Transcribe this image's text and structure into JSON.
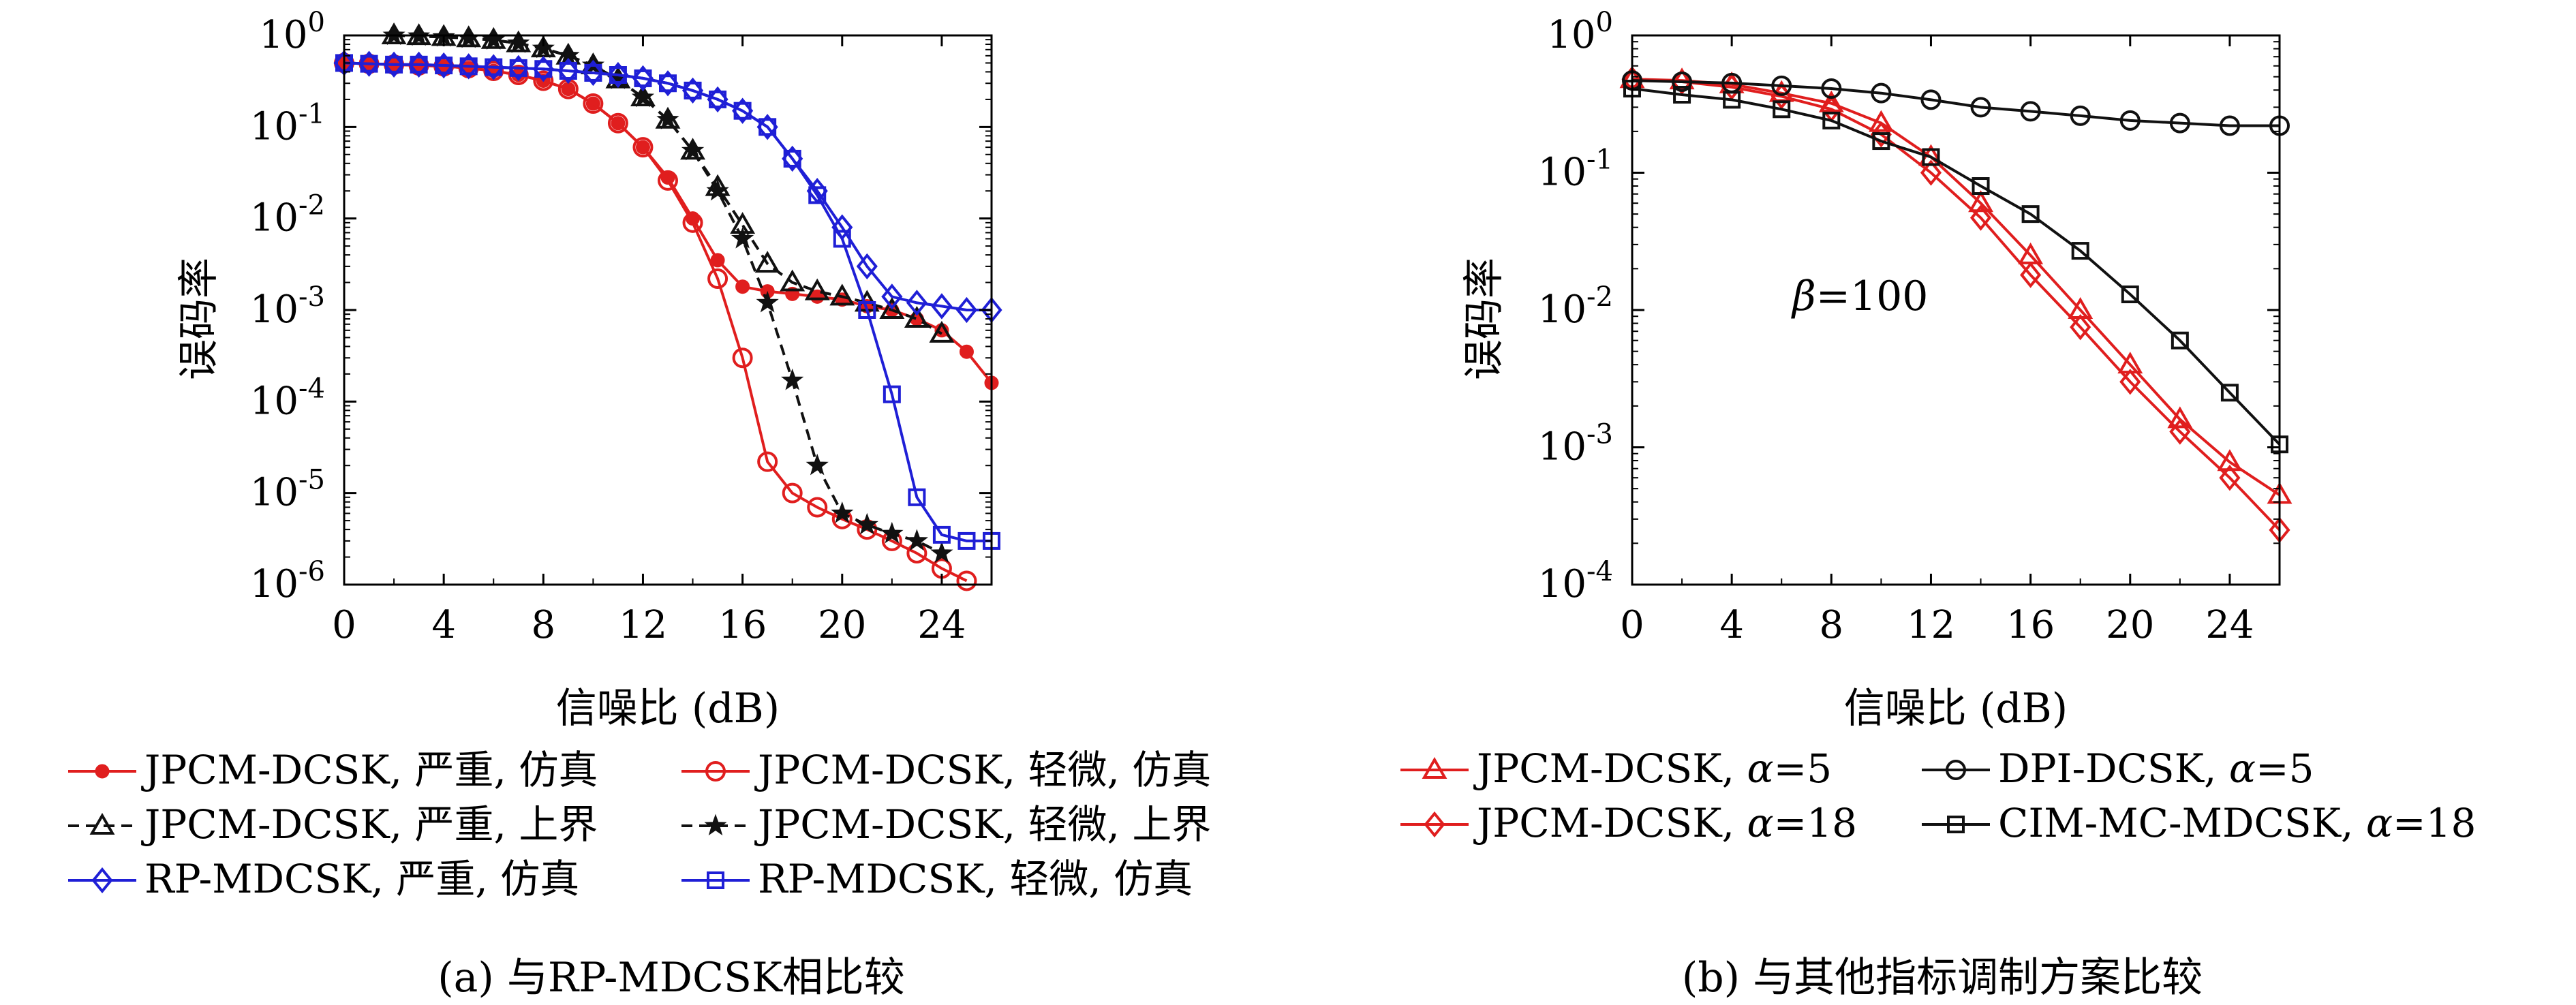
{
  "chart_data": [
    {
      "type": "line",
      "caption": "(a) 与RP-MDCSK相比较",
      "xlabel": "信噪比 (dB)",
      "ylabel": "误码率",
      "xlim": [
        0,
        26
      ],
      "ylim": [
        1e-06,
        1
      ],
      "yscale": "log",
      "xticks": [
        "0",
        "4",
        "8",
        "12",
        "16",
        "20",
        "24"
      ],
      "ytick_bases": [
        "10",
        "10",
        "10",
        "10",
        "10",
        "10",
        "10"
      ],
      "ytick_exps": [
        "0",
        "-1",
        "-2",
        "-3",
        "-4",
        "-5",
        "-6"
      ],
      "grid": false,
      "legend_position": "below",
      "series": [
        {
          "name": "JPCM-DCSK, 严重, 仿真",
          "color": "#e01e1e",
          "marker": "dot",
          "dash": "solid",
          "x": [
            0,
            1,
            2,
            3,
            4,
            5,
            6,
            7,
            8,
            9,
            10,
            11,
            12,
            13,
            14,
            15,
            16,
            17,
            18,
            19,
            20,
            21,
            22,
            23,
            24,
            25,
            26
          ],
          "y": [
            0.5,
            0.49,
            0.48,
            0.47,
            0.46,
            0.44,
            0.41,
            0.37,
            0.32,
            0.26,
            0.18,
            0.11,
            0.06,
            0.028,
            0.01,
            0.0035,
            0.0018,
            0.0016,
            0.0015,
            0.0014,
            0.0013,
            0.0011,
            0.001,
            0.0008,
            0.0006,
            0.00035,
            0.00016
          ]
        },
        {
          "name": "JPCM-DCSK, 轻微, 仿真",
          "color": "#e01e1e",
          "marker": "circle",
          "dash": "solid",
          "x": [
            0,
            1,
            2,
            3,
            4,
            5,
            6,
            7,
            8,
            9,
            10,
            11,
            12,
            13,
            14,
            15,
            16,
            17,
            18,
            19,
            20,
            21,
            22,
            23,
            24,
            25
          ],
          "y": [
            0.5,
            0.49,
            0.48,
            0.47,
            0.46,
            0.44,
            0.41,
            0.37,
            0.32,
            0.26,
            0.18,
            0.11,
            0.06,
            0.026,
            0.009,
            0.0022,
            0.0003,
            2.2e-05,
            1e-05,
            7e-06,
            5.2e-06,
            4e-06,
            3e-06,
            2.2e-06,
            1.5e-06,
            1.1e-06
          ]
        },
        {
          "name": "JPCM-DCSK, 严重, 上界",
          "color": "#111111",
          "marker": "triangle",
          "dash": "dashed",
          "x": [
            2,
            3,
            4,
            5,
            6,
            7,
            8,
            9,
            10,
            11,
            12,
            13,
            14,
            15,
            16,
            17,
            18,
            19,
            20,
            21,
            22,
            23,
            24
          ],
          "y": [
            1.0,
            0.98,
            0.96,
            0.93,
            0.89,
            0.82,
            0.72,
            0.6,
            0.47,
            0.33,
            0.21,
            0.12,
            0.055,
            0.022,
            0.0085,
            0.0032,
            0.002,
            0.0016,
            0.0014,
            0.0012,
            0.001,
            0.0008,
            0.00055
          ]
        },
        {
          "name": "JPCM-DCSK, 轻微, 上界",
          "color": "#111111",
          "marker": "star",
          "dash": "dashed",
          "x": [
            2,
            3,
            4,
            5,
            6,
            7,
            8,
            9,
            10,
            11,
            12,
            13,
            14,
            15,
            16,
            17,
            18,
            19,
            20,
            21,
            22,
            23,
            24
          ],
          "y": [
            1.0,
            0.98,
            0.96,
            0.93,
            0.89,
            0.82,
            0.72,
            0.6,
            0.47,
            0.33,
            0.21,
            0.12,
            0.055,
            0.02,
            0.006,
            0.0012,
            0.00017,
            2e-05,
            6e-06,
            4.5e-06,
            3.6e-06,
            3e-06,
            2.2e-06
          ]
        },
        {
          "name": "RP-MDCSK, 严重, 仿真",
          "color": "#1f1fd6",
          "marker": "diamond",
          "dash": "solid",
          "x": [
            0,
            1,
            2,
            3,
            4,
            5,
            6,
            7,
            8,
            9,
            10,
            11,
            12,
            13,
            14,
            15,
            16,
            17,
            18,
            19,
            20,
            21,
            22,
            23,
            24,
            25,
            26
          ],
          "y": [
            0.5,
            0.49,
            0.48,
            0.48,
            0.47,
            0.46,
            0.45,
            0.44,
            0.43,
            0.41,
            0.39,
            0.37,
            0.34,
            0.3,
            0.25,
            0.2,
            0.15,
            0.1,
            0.045,
            0.02,
            0.008,
            0.003,
            0.0014,
            0.0012,
            0.0011,
            0.001,
            0.001
          ]
        },
        {
          "name": "RP-MDCSK, 轻微, 仿真",
          "color": "#1f1fd6",
          "marker": "square",
          "dash": "solid",
          "x": [
            0,
            1,
            2,
            3,
            4,
            5,
            6,
            7,
            8,
            9,
            10,
            11,
            12,
            13,
            14,
            15,
            16,
            17,
            18,
            19,
            20,
            21,
            22,
            23,
            24,
            25,
            26
          ],
          "y": [
            0.5,
            0.49,
            0.48,
            0.48,
            0.47,
            0.46,
            0.45,
            0.44,
            0.43,
            0.41,
            0.39,
            0.37,
            0.34,
            0.3,
            0.25,
            0.2,
            0.15,
            0.1,
            0.045,
            0.018,
            0.006,
            0.001,
            0.00012,
            9e-06,
            3.5e-06,
            3e-06,
            3e-06
          ]
        }
      ]
    },
    {
      "type": "line",
      "caption": "(b) 与其他指标调制方案比较",
      "xlabel": "信噪比 (dB)",
      "ylabel": "误码率",
      "xlim": [
        0,
        26
      ],
      "ylim": [
        0.0001,
        1
      ],
      "yscale": "log",
      "xticks": [
        "0",
        "4",
        "8",
        "12",
        "16",
        "20",
        "24"
      ],
      "ytick_bases": [
        "10",
        "10",
        "10",
        "10",
        "10"
      ],
      "ytick_exps": [
        "0",
        "-1",
        "-2",
        "-3",
        "-4"
      ],
      "grid": false,
      "legend_position": "below",
      "annotation_symbol": "β",
      "annotation_value": "=100",
      "series": [
        {
          "name": "JPCM-DCSK, ",
          "param": "α",
          "param_value": "=5",
          "color": "#e01e1e",
          "marker": "triangle",
          "dash": "solid",
          "x": [
            0,
            2,
            4,
            6,
            8,
            10,
            12,
            14,
            16,
            18,
            20,
            22,
            24,
            26
          ],
          "y": [
            0.48,
            0.47,
            0.44,
            0.38,
            0.32,
            0.23,
            0.13,
            0.06,
            0.025,
            0.01,
            0.004,
            0.0016,
            0.00078,
            0.00045
          ]
        },
        {
          "name": "JPCM-DCSK, ",
          "param": "α",
          "param_value": "=18",
          "color": "#e01e1e",
          "marker": "diamond",
          "dash": "solid",
          "x": [
            0,
            2,
            4,
            6,
            8,
            10,
            12,
            14,
            16,
            18,
            20,
            22,
            24,
            26
          ],
          "y": [
            0.48,
            0.46,
            0.42,
            0.36,
            0.29,
            0.19,
            0.1,
            0.047,
            0.018,
            0.0075,
            0.003,
            0.0013,
            0.0006,
            0.00025
          ]
        },
        {
          "name": "DPI-DCSK, ",
          "param": "α",
          "param_value": "=5",
          "color": "#111111",
          "marker": "circle",
          "dash": "solid",
          "x": [
            0,
            2,
            4,
            6,
            8,
            10,
            12,
            14,
            16,
            18,
            20,
            22,
            24,
            26
          ],
          "y": [
            0.47,
            0.46,
            0.45,
            0.43,
            0.41,
            0.38,
            0.34,
            0.3,
            0.28,
            0.26,
            0.24,
            0.23,
            0.22,
            0.22
          ]
        },
        {
          "name": "CIM-MC-MDCSK,  ",
          "param": "α",
          "param_value": "=18",
          "color": "#111111",
          "marker": "square",
          "dash": "solid",
          "x": [
            0,
            2,
            4,
            6,
            8,
            10,
            12,
            14,
            16,
            18,
            20,
            22,
            24,
            26
          ],
          "y": [
            0.41,
            0.37,
            0.34,
            0.29,
            0.24,
            0.17,
            0.13,
            0.08,
            0.05,
            0.027,
            0.013,
            0.006,
            0.0025,
            0.00105
          ]
        }
      ]
    }
  ]
}
